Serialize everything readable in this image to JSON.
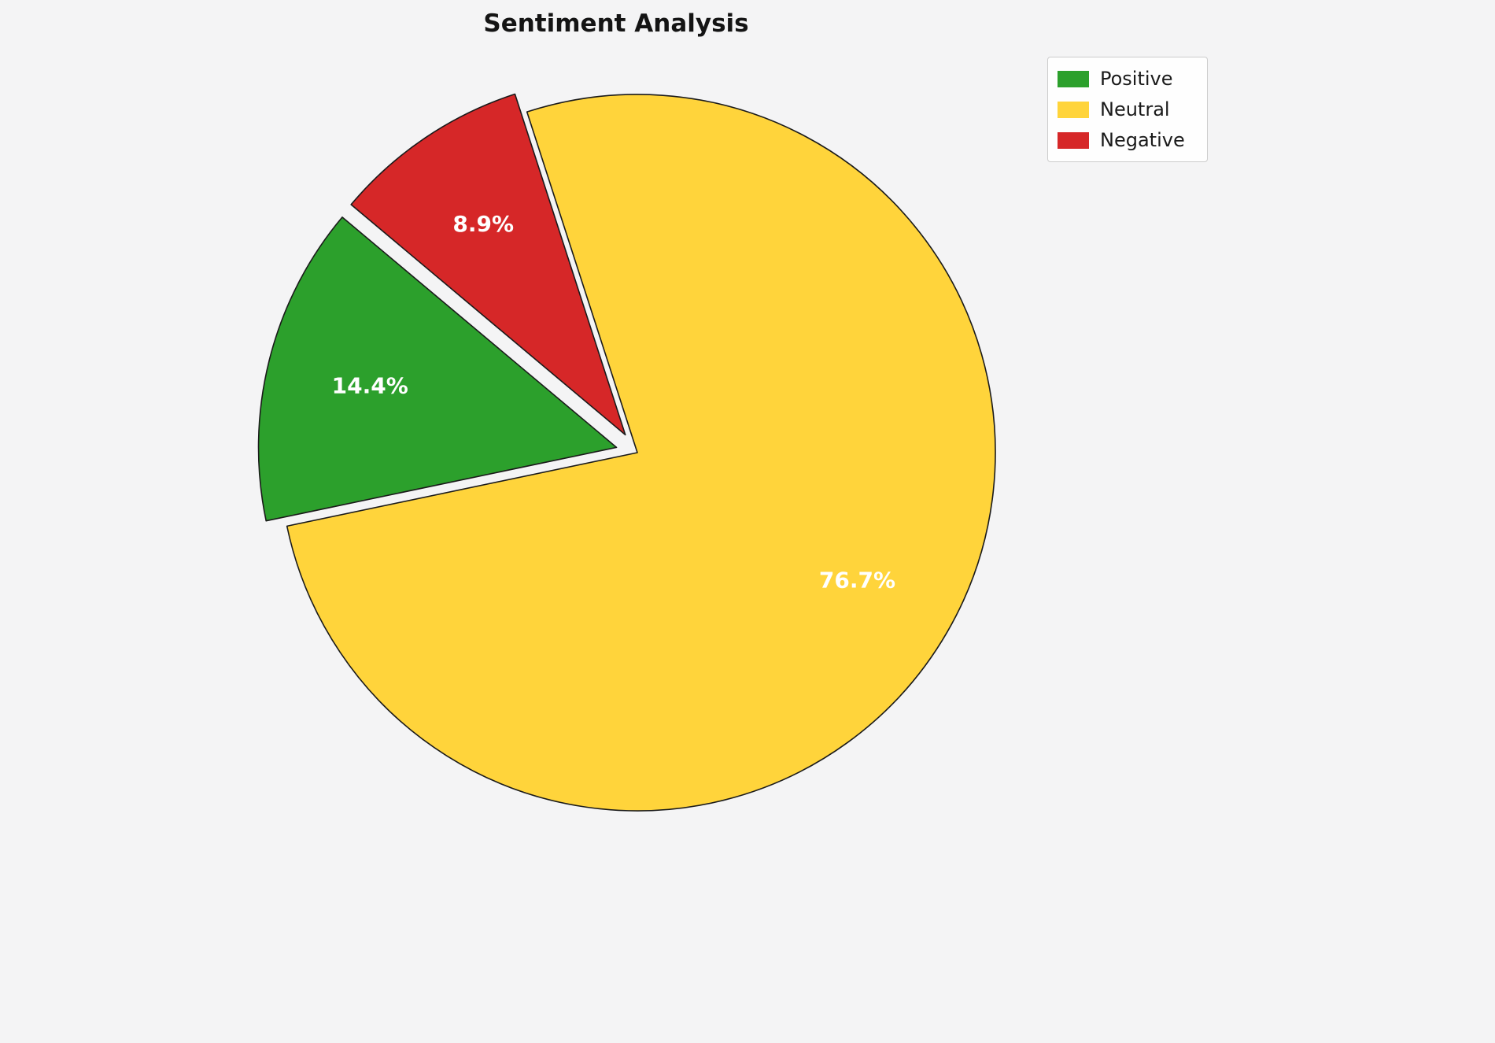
{
  "page": {
    "background_color": "#f4f4f5"
  },
  "chart_data": {
    "type": "pie",
    "title": "Sentiment Analysis",
    "start_angle": 140,
    "direction": "counterclockwise",
    "edge_color": "#1a1a1a",
    "pct_label_color": "#ffffff",
    "categories": [
      "Positive",
      "Neutral",
      "Negative"
    ],
    "values": [
      14.4,
      76.7,
      8.9
    ],
    "slices": [
      {
        "label": "Positive",
        "value": 14.4,
        "display": "14.4%",
        "color": "#2ca02c",
        "explode": 0.06
      },
      {
        "label": "Neutral",
        "value": 76.7,
        "display": "76.7%",
        "color": "#ffd43b",
        "explode": 0.0
      },
      {
        "label": "Negative",
        "value": 8.9,
        "display": "8.9%",
        "color": "#d62728",
        "explode": 0.06
      }
    ],
    "legend": {
      "position": "upper right",
      "entries": [
        "Positive",
        "Neutral",
        "Negative"
      ]
    }
  }
}
